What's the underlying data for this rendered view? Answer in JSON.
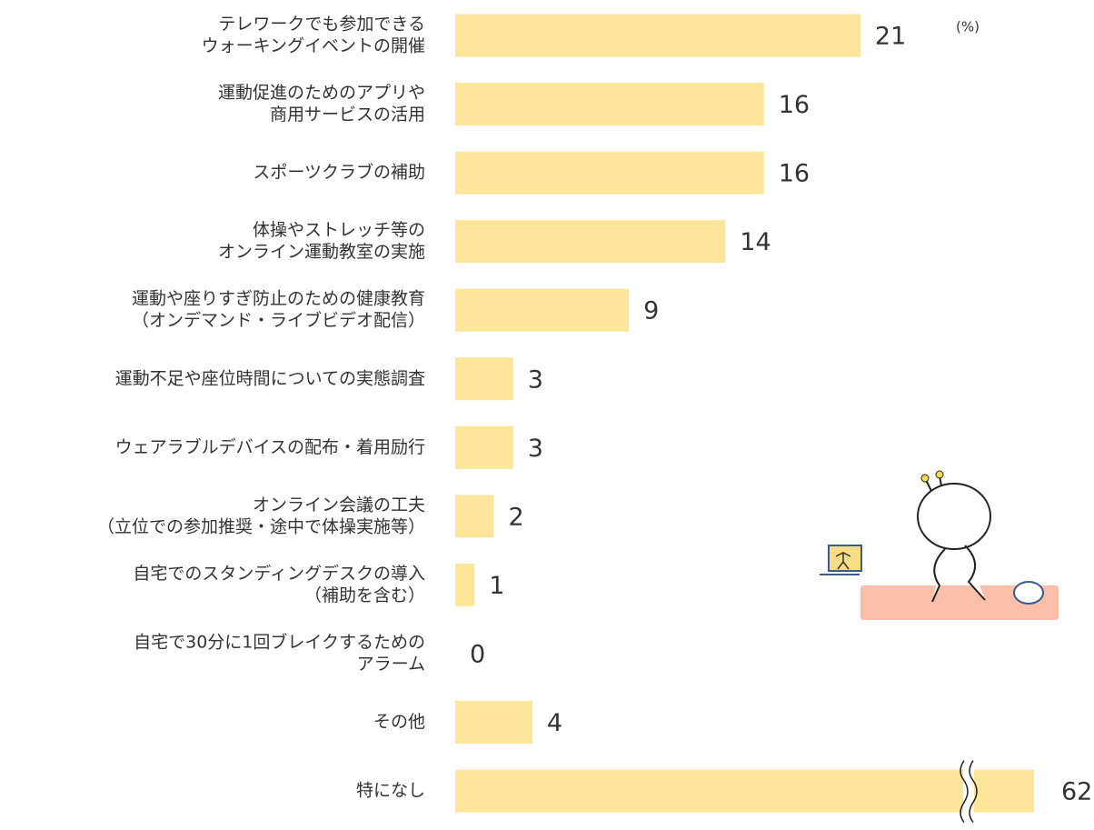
{
  "chart_data": {
    "type": "hbar",
    "unit": "(%)",
    "categories": [
      [
        "テレワークでも参加できる",
        "ウォーキングイベントの開催"
      ],
      [
        "運動促進のためのアプリや",
        "商用サービスの活用"
      ],
      [
        "スポーツクラブの補助"
      ],
      [
        "体操やストレッチ等の",
        "オンライン運動教室の実施"
      ],
      [
        "運動や座りすぎ防止のための健康教育",
        "（オンデマンド・ライブビデオ配信）"
      ],
      [
        "運動不足や座位時間についての実態調査"
      ],
      [
        "ウェアラブルデバイスの配布・着用励行"
      ],
      [
        "オンライン会議の工夫",
        "（立位での参加推奨・途中で体操実施等）"
      ],
      [
        "自宅でのスタンディングデスクの導入",
        "（補助を含む）"
      ],
      [
        "自宅で30分に1回ブレイクするための",
        "アラーム"
      ],
      [
        "その他"
      ],
      [
        "特になし"
      ]
    ],
    "values": [
      21,
      16,
      16,
      14,
      9,
      3,
      3,
      2,
      1,
      0,
      4,
      62
    ],
    "color": "#fde59a",
    "xlim": [
      0,
      30
    ],
    "axis_break": true
  }
}
